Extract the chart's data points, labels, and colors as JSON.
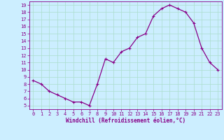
{
  "x": [
    0,
    1,
    2,
    3,
    4,
    5,
    6,
    7,
    8,
    9,
    10,
    11,
    12,
    13,
    14,
    15,
    16,
    17,
    18,
    19,
    20,
    21,
    22,
    23
  ],
  "y": [
    8.5,
    8.0,
    7.0,
    6.5,
    6.0,
    5.5,
    5.5,
    5.0,
    8.0,
    11.5,
    11.0,
    12.5,
    13.0,
    14.5,
    15.0,
    17.5,
    18.5,
    19.0,
    18.5,
    18.0,
    16.5,
    13.0,
    11.0,
    10.0
  ],
  "line_color": "#880088",
  "marker": "+",
  "marker_size": 3.5,
  "marker_lw": 0.8,
  "bg_color": "#cceeff",
  "grid_color": "#aaddcc",
  "xlabel": "Windchill (Refroidissement éolien,°C)",
  "tick_color": "#880088",
  "xlim": [
    -0.5,
    23.5
  ],
  "ylim": [
    4.5,
    19.5
  ],
  "yticks": [
    5,
    6,
    7,
    8,
    9,
    10,
    11,
    12,
    13,
    14,
    15,
    16,
    17,
    18,
    19
  ],
  "xticks": [
    0,
    1,
    2,
    3,
    4,
    5,
    6,
    7,
    8,
    9,
    10,
    11,
    12,
    13,
    14,
    15,
    16,
    17,
    18,
    19,
    20,
    21,
    22,
    23
  ],
  "line_width": 0.9,
  "tick_fontsize": 5.0,
  "xlabel_fontsize": 5.5
}
